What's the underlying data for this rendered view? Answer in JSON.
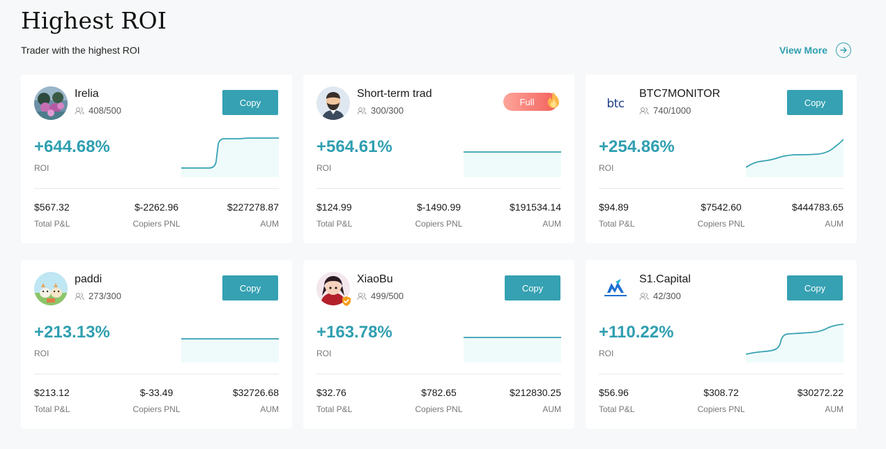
{
  "header": {
    "title": "Highest ROI",
    "subtitle": "Trader with the highest ROI",
    "view_more_label": "View More"
  },
  "labels": {
    "roi": "ROI",
    "total_pnl": "Total P&L",
    "copiers_pnl": "Copiers PNL",
    "aum": "AUM",
    "copy": "Copy",
    "full": "Full"
  },
  "colors": {
    "accent": "#35a1b2",
    "roi_text": "#2f9fb0",
    "full_badge_start": "#fda59b",
    "full_badge_end": "#f3605b"
  },
  "traders": [
    {
      "name": "Irelia",
      "followers": "408/500",
      "roi": "+644.68%",
      "total_pnl": "$567.32",
      "copiers_pnl": "$-2262.96",
      "aum": "$227278.87",
      "status": "copy",
      "avatar": "landscape-avatar"
    },
    {
      "name": "Short-term trad",
      "followers": "300/300",
      "roi": "+564.61%",
      "total_pnl": "$124.99",
      "copiers_pnl": "$-1490.99",
      "aum": "$191534.14",
      "status": "full",
      "avatar": "bearded-man-avatar"
    },
    {
      "name": "BTC7MONITOR",
      "followers": "740/1000",
      "roi": "+254.86%",
      "total_pnl": "$94.89",
      "copiers_pnl": "$7542.60",
      "aum": "$444783.65",
      "status": "copy",
      "avatar": "btc-logo-avatar"
    },
    {
      "name": "paddi",
      "followers": "273/300",
      "roi": "+213.13%",
      "total_pnl": "$213.12",
      "copiers_pnl": "$-33.49",
      "aum": "$32726.68",
      "status": "copy",
      "avatar": "cartoon-animals-avatar"
    },
    {
      "name": "XiaoBu",
      "followers": "499/500",
      "roi": "+163.78%",
      "total_pnl": "$32.76",
      "copiers_pnl": "$782.65",
      "aum": "$212830.25",
      "status": "copy",
      "avatar": "anime-character-avatar"
    },
    {
      "name": "S1.Capital",
      "followers": "42/300",
      "roi": "+110.22%",
      "total_pnl": "$56.96",
      "copiers_pnl": "$308.72",
      "aum": "$30272.22",
      "status": "copy",
      "avatar": "s1-capital-logo-avatar"
    }
  ]
}
